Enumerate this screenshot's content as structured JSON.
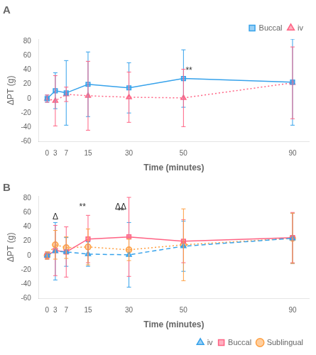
{
  "chart_data": [
    {
      "type": "line",
      "title": "A",
      "xlabel": "Time (minutes)",
      "ylabel": "ΔPT (g)",
      "x": [
        0,
        3,
        7,
        15,
        30,
        50,
        90
      ],
      "xlim": [
        -3,
        96
      ],
      "xticks": [
        0,
        3,
        7,
        15,
        30,
        50,
        90
      ],
      "ylim": [
        -60,
        83
      ],
      "yticks": [
        -60,
        -40,
        -20,
        0,
        20,
        40,
        60,
        80
      ],
      "grid": false,
      "legend": "upper right",
      "series": [
        {
          "name": "Buccal",
          "values": [
            0,
            11,
            8,
            20,
            15,
            28,
            23
          ],
          "errors": [
            5,
            25,
            45,
            45,
            35,
            40,
            60
          ],
          "marker": "square",
          "line_style": "solid"
        },
        {
          "name": "iv",
          "values": [
            0,
            -3,
            6,
            4,
            2,
            1,
            22
          ],
          "errors": [
            5,
            35,
            10,
            48,
            35,
            40,
            50
          ],
          "marker": "triangle",
          "line_style": "dotted"
        }
      ],
      "annotations": [
        {
          "text": "**",
          "x": 52,
          "y": 33
        }
      ]
    },
    {
      "type": "line",
      "title": "B",
      "xlabel": "Time (minutes)",
      "ylabel": "ΔPT (g)",
      "x": [
        0,
        3,
        7,
        15,
        30,
        50,
        90
      ],
      "xlim": [
        -3,
        96
      ],
      "xticks": [
        0,
        3,
        7,
        15,
        30,
        50,
        90
      ],
      "ylim": [
        -60,
        83
      ],
      "yticks": [
        -60,
        -40,
        -20,
        0,
        20,
        40,
        60,
        80
      ],
      "grid": false,
      "legend": "lower right",
      "series": [
        {
          "name": "iv",
          "values": [
            0,
            6,
            5,
            2,
            1,
            13,
            24
          ],
          "errors": [
            5,
            40,
            20,
            17,
            45,
            35,
            35
          ],
          "marker": "triangle",
          "line_style": "dashed"
        },
        {
          "name": "Buccal",
          "values": [
            0,
            7,
            5,
            23,
            26,
            20,
            25
          ],
          "errors": [
            5,
            35,
            35,
            33,
            55,
            30,
            35
          ],
          "marker": "square",
          "line_style": "solid"
        },
        {
          "name": "Sublingual",
          "values": [
            0,
            15,
            11,
            12,
            8,
            15,
            24
          ],
          "errors": [
            5,
            20,
            15,
            25,
            15,
            50,
            35
          ],
          "marker": "circle",
          "line_style": "dotted"
        }
      ],
      "annotations": [
        {
          "text": "Δ",
          "x": 3,
          "y": 48
        },
        {
          "text": "**",
          "x": 13,
          "y": 62
        },
        {
          "text": "ΔΔ",
          "x": 27,
          "y": 62
        },
        {
          "text": "**",
          "x": 27,
          "y": 56
        }
      ]
    }
  ]
}
